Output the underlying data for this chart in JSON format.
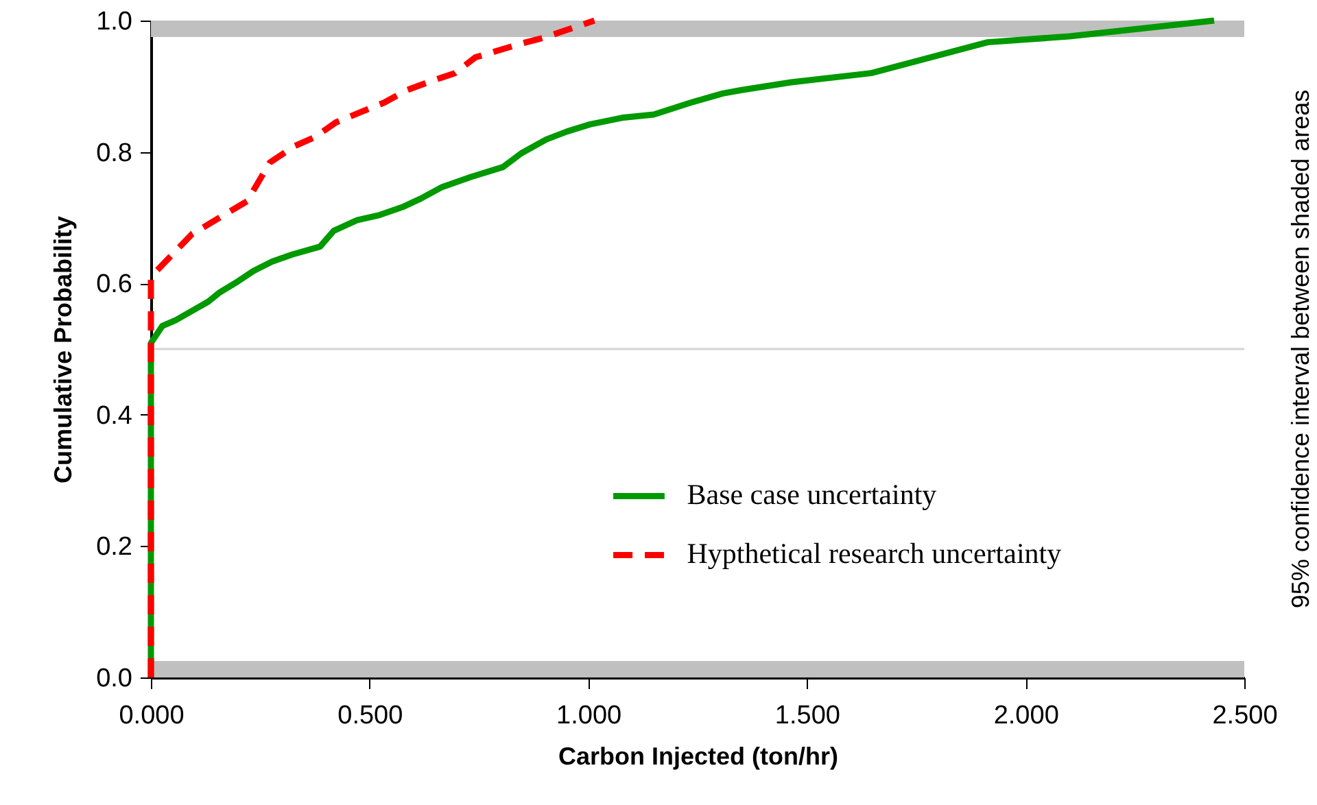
{
  "chart_data": {
    "type": "line",
    "xlabel": "Carbon Injected (ton/hr)",
    "ylabel": "Cumulative Probability",
    "annotations": [
      "95% confidence interval between shaded areas"
    ],
    "xlim": [
      0,
      2.5
    ],
    "ylim": [
      0,
      1
    ],
    "xticks": [
      {
        "value": 0,
        "label": "0.000"
      },
      {
        "value": 0.5,
        "label": "0.500"
      },
      {
        "value": 1,
        "label": "1.000"
      },
      {
        "value": 1.5,
        "label": "1.500"
      },
      {
        "value": 2,
        "label": "2.000"
      },
      {
        "value": 2.5,
        "label": "2.500"
      }
    ],
    "yticks": [
      {
        "value": 0,
        "label": "0.0"
      },
      {
        "value": 0.2,
        "label": "0.2"
      },
      {
        "value": 0.4,
        "label": "0.4"
      },
      {
        "value": 0.6,
        "label": "0.6"
      },
      {
        "value": 0.8,
        "label": "0.8"
      },
      {
        "value": 1,
        "label": "1.0"
      }
    ],
    "grid": false,
    "legend": "bottom right",
    "bands": [
      {
        "axis": "y",
        "from": 0.975,
        "to": 1.0,
        "color": "#c0c0c0"
      },
      {
        "axis": "y",
        "from": 0,
        "to": 0.025,
        "color": "#c0c0c0"
      }
    ],
    "ref_lines": [
      {
        "axis": "y",
        "value": 0.5,
        "color": "#d4d4d4"
      }
    ],
    "series": [
      {
        "name": "Base case uncertainty",
        "color": "#009900",
        "line_style": "solid",
        "x": [
          0,
          0,
          0.026,
          0.057,
          0.094,
          0.131,
          0.157,
          0.199,
          0.235,
          0.277,
          0.324,
          0.387,
          0.418,
          0.471,
          0.523,
          0.575,
          0.617,
          0.664,
          0.732,
          0.805,
          0.847,
          0.904,
          0.951,
          1.004,
          1.077,
          1.15,
          1.234,
          1.307,
          1.349,
          1.464,
          1.647,
          1.913,
          2.1,
          2.431
        ],
        "values": [
          0,
          0.509,
          0.535,
          0.544,
          0.558,
          0.572,
          0.586,
          0.603,
          0.619,
          0.633,
          0.644,
          0.656,
          0.68,
          0.696,
          0.704,
          0.716,
          0.729,
          0.746,
          0.762,
          0.777,
          0.798,
          0.819,
          0.831,
          0.842,
          0.852,
          0.857,
          0.875,
          0.889,
          0.894,
          0.906,
          0.92,
          0.967,
          0.976,
          1.0
        ]
      },
      {
        "name": "Hypthetical research uncertainty",
        "color": "#ff0000",
        "line_style": "dashed",
        "x": [
          0,
          0,
          0.094,
          0.167,
          0.22,
          0.272,
          0.329,
          0.376,
          0.423,
          0.481,
          0.533,
          0.585,
          0.637,
          0.695,
          0.742,
          0.847,
          0.899,
          1.014
        ],
        "values": [
          0,
          0.61,
          0.675,
          0.704,
          0.725,
          0.784,
          0.809,
          0.823,
          0.845,
          0.861,
          0.875,
          0.894,
          0.907,
          0.92,
          0.944,
          0.965,
          0.974,
          1.0
        ]
      }
    ]
  }
}
